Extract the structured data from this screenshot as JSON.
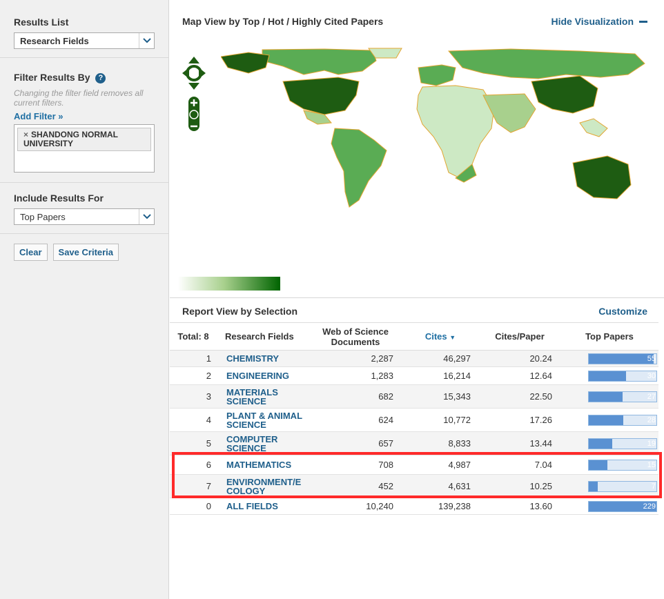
{
  "sidebar": {
    "results_list_title": "Results List",
    "results_list_value": "Research Fields",
    "filter_title": "Filter Results By",
    "filter_help": "?",
    "filter_hint": "Changing the filter field removes all current filters.",
    "add_filter": "Add Filter »",
    "filter_chip": "SHANDONG NORMAL UNIVERSITY",
    "include_title": "Include Results For",
    "include_value": "Top Papers",
    "clear_label": "Clear",
    "save_label": "Save Criteria"
  },
  "map": {
    "title": "Map View by Top / Hot / Highly Cited Papers",
    "hide_label": "Hide Visualization"
  },
  "report": {
    "title": "Report View by Selection",
    "customize_label": "Customize",
    "columns": {
      "total": "Total: 8",
      "field": "Research Fields",
      "docs": "Web of Science Documents",
      "cites": "Cites",
      "cpp": "Cites/Paper",
      "top": "Top Papers"
    },
    "rows": [
      {
        "rank": "1",
        "field": "CHEMISTRY",
        "docs": "2,287",
        "cites": "46,297",
        "cpp": "20.24",
        "top": "55",
        "top_fraction": 0.96
      },
      {
        "rank": "2",
        "field": "ENGINEERING",
        "docs": "1,283",
        "cites": "16,214",
        "cpp": "12.64",
        "top": "30",
        "top_fraction": 0.55
      },
      {
        "rank": "3",
        "field": "MATERIALS SCIENCE",
        "docs": "682",
        "cites": "15,343",
        "cpp": "22.50",
        "top": "27",
        "top_fraction": 0.5
      },
      {
        "rank": "4",
        "field": "PLANT & ANIMAL SCIENCE",
        "docs": "624",
        "cites": "10,772",
        "cpp": "17.26",
        "top": "28",
        "top_fraction": 0.51
      },
      {
        "rank": "5",
        "field": "COMPUTER SCIENCE",
        "docs": "657",
        "cites": "8,833",
        "cpp": "13.44",
        "top": "19",
        "top_fraction": 0.35
      },
      {
        "rank": "6",
        "field": "MATHEMATICS",
        "docs": "708",
        "cites": "4,987",
        "cpp": "7.04",
        "top": "15",
        "top_fraction": 0.28
      },
      {
        "rank": "7",
        "field": "ENVIRONMENT/E COLOGY",
        "docs": "452",
        "cites": "4,631",
        "cpp": "10.25",
        "top": "7",
        "top_fraction": 0.13
      },
      {
        "rank": "0",
        "field": "ALL FIELDS",
        "docs": "10,240",
        "cites": "139,238",
        "cpp": "13.60",
        "top": "229",
        "top_fraction": 1.0
      }
    ]
  },
  "colors": {
    "link": "#1f5f8b",
    "map_dark": "#1e5c12",
    "map_mid": "#5aac54",
    "map_light": "#cde9c4",
    "bar_fill": "#5a91d2",
    "highlight": "#ff2a2a"
  }
}
